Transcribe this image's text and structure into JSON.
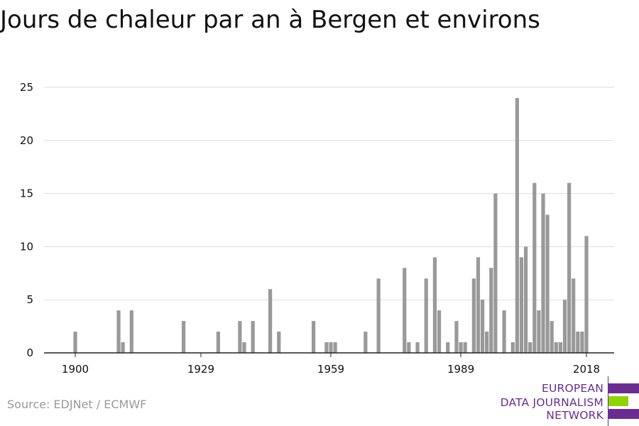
{
  "title": "Jours de chaleur par an à Bergen et environs",
  "source": "Source: EDJNet / ECMWF",
  "logo": {
    "lines": [
      "EUROPEAN",
      "DATA JOURNALISM",
      "NETWORK"
    ],
    "colors": {
      "purple": "#6a2c91",
      "green": "#8fd400"
    }
  },
  "colors": {
    "bar": "#999999",
    "grid": "#dddddd",
    "axis": "#222222",
    "text": "#111111"
  },
  "chart_data": {
    "type": "bar",
    "title": "Jours de chaleur par an à Bergen et environs",
    "xlabel": "",
    "ylabel": "",
    "xlim": [
      1894,
      2022
    ],
    "ylim": [
      0,
      25
    ],
    "yticks": [
      0,
      5,
      10,
      15,
      20,
      25
    ],
    "xticks": [
      1900,
      1929,
      1959,
      1989,
      2018
    ],
    "grid": true,
    "x": [
      1900,
      1910,
      1911,
      1913,
      1925,
      1933,
      1938,
      1939,
      1941,
      1945,
      1947,
      1955,
      1958,
      1959,
      1960,
      1967,
      1970,
      1976,
      1977,
      1979,
      1981,
      1983,
      1984,
      1986,
      1988,
      1989,
      1990,
      1992,
      1993,
      1994,
      1995,
      1996,
      1997,
      1999,
      2001,
      2002,
      2003,
      2004,
      2005,
      2006,
      2007,
      2008,
      2009,
      2010,
      2011,
      2012,
      2013,
      2014,
      2015,
      2016,
      2017,
      2018
    ],
    "values": [
      2,
      4,
      1,
      4,
      3,
      2,
      3,
      1,
      3,
      6,
      2,
      3,
      1,
      1,
      1,
      2,
      7,
      8,
      1,
      1,
      7,
      9,
      4,
      1,
      3,
      1,
      1,
      7,
      9,
      5,
      2,
      8,
      15,
      4,
      1,
      24,
      9,
      10,
      1,
      16,
      4,
      15,
      13,
      3,
      1,
      1,
      5,
      16,
      7,
      2,
      2,
      11
    ]
  }
}
